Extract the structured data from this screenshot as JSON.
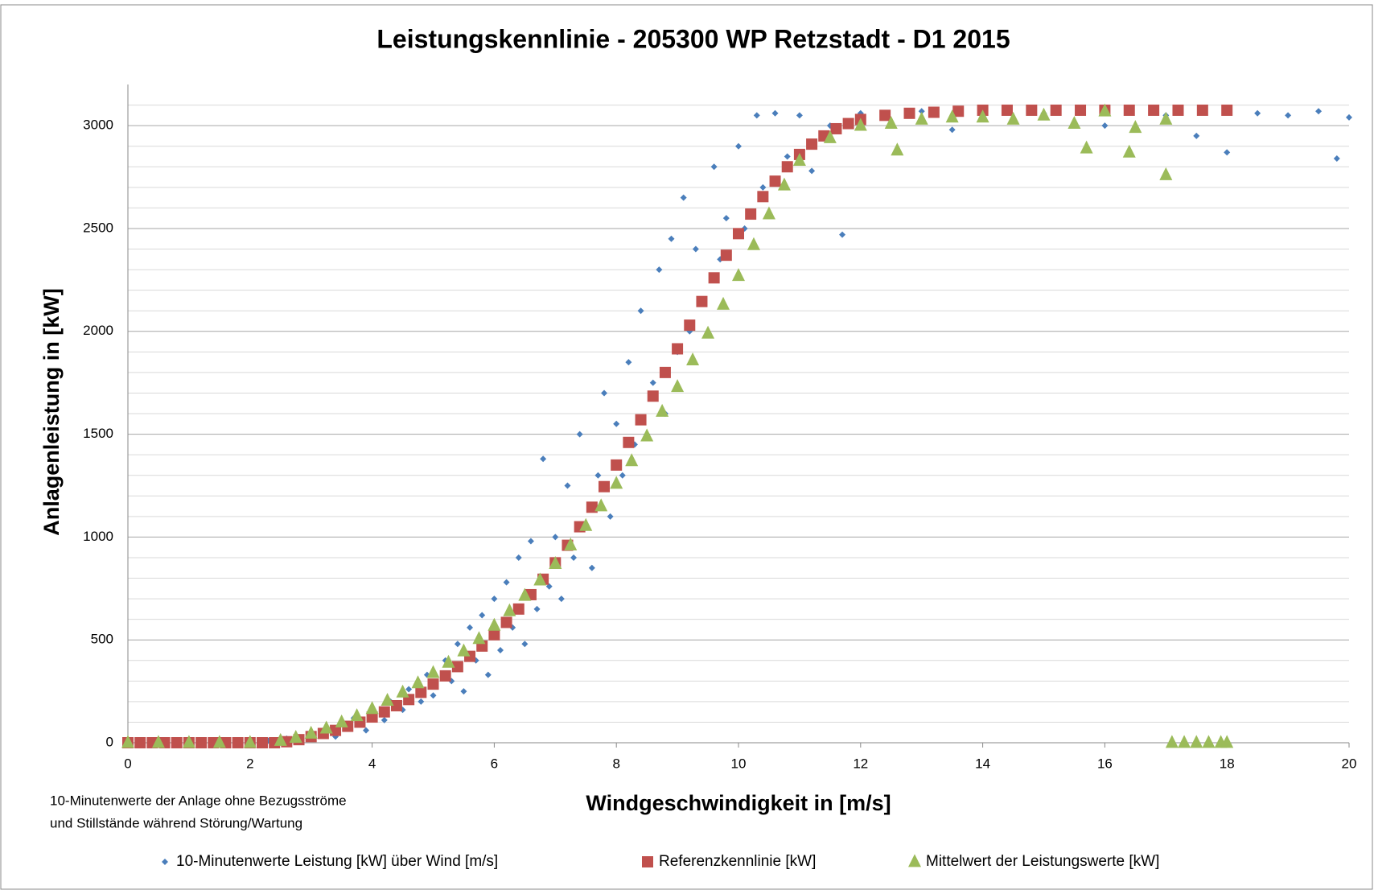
{
  "chart_data": {
    "type": "scatter",
    "title": "Leistungskennlinie - 205300 WP Retzstadt - D1 2015",
    "x_label": "Windgeschwindigkeit in [m/s]",
    "y_label": "Anlagenleistung in [kW]",
    "note": [
      "10-Minutenwerte der Anlage ohne Bezugsströme",
      "und Stillstände während Störung/Wartung"
    ],
    "xlim": [
      0,
      20
    ],
    "xticks": [
      0,
      2,
      4,
      6,
      8,
      10,
      12,
      14,
      16,
      18,
      20
    ],
    "ylim": [
      0,
      3200
    ],
    "yticks": [
      0,
      500,
      1000,
      1500,
      2000,
      2500,
      3000
    ],
    "minor_yticks": [
      100,
      200,
      300,
      400,
      600,
      700,
      800,
      900,
      1100,
      1200,
      1300,
      1400,
      1600,
      1700,
      1800,
      1900,
      2100,
      2200,
      2300,
      2400,
      2600,
      2700,
      2800,
      2900,
      3100
    ],
    "grid": true,
    "legend": "bottom",
    "series": [
      {
        "name": "10-Minutenwerte Leistung [kW] über Wind [m/s]",
        "color": "#4a7ebb",
        "marker": "diamond",
        "x": [
          0.5,
          1,
          1.5,
          2,
          2.3,
          2.6,
          2.8,
          3,
          3.2,
          3.4,
          3.5,
          3.7,
          3.9,
          4,
          4.2,
          4.3,
          4.5,
          4.6,
          4.8,
          4.9,
          5,
          5.2,
          5.3,
          5.4,
          5.5,
          5.6,
          5.7,
          5.8,
          5.9,
          6,
          6.1,
          6.2,
          6.3,
          6.4,
          6.5,
          6.6,
          6.7,
          6.8,
          6.9,
          7,
          7.1,
          7.2,
          7.3,
          7.4,
          7.5,
          7.6,
          7.7,
          7.8,
          7.9,
          8,
          8.1,
          8.2,
          8.3,
          8.4,
          8.5,
          8.6,
          8.7,
          8.8,
          8.9,
          9,
          9.1,
          9.2,
          9.3,
          9.4,
          9.6,
          9.7,
          9.8,
          10,
          10.1,
          10.3,
          10.4,
          10.6,
          10.8,
          11,
          11.2,
          11.5,
          11.7,
          12,
          12.5,
          13,
          13.5,
          14,
          15,
          16,
          17,
          17.5,
          18,
          18.5,
          19,
          19.5,
          19.8,
          20
        ],
        "values": [
          0,
          0,
          0,
          0,
          10,
          20,
          5,
          40,
          60,
          30,
          90,
          120,
          60,
          150,
          110,
          200,
          160,
          260,
          200,
          330,
          230,
          400,
          300,
          480,
          250,
          560,
          400,
          620,
          330,
          700,
          450,
          780,
          560,
          900,
          480,
          980,
          650,
          1380,
          760,
          1000,
          700,
          1250,
          900,
          1500,
          1050,
          850,
          1300,
          1700,
          1100,
          1550,
          1300,
          1850,
          1450,
          2100,
          1500,
          1750,
          2300,
          1600,
          2450,
          1900,
          2650,
          2000,
          2400,
          2150,
          2800,
          2350,
          2550,
          2900,
          2500,
          3050,
          2700,
          3060,
          2850,
          3050,
          2780,
          3000,
          2470,
          3060,
          3000,
          3070,
          2980,
          3070,
          3060,
          3000,
          3050,
          2950,
          2870,
          3060,
          3050,
          3070,
          2840,
          3040
        ]
      },
      {
        "name": "Referenzkennlinie [kW]",
        "color": "#c0504d",
        "marker": "square",
        "x": [
          0,
          0.2,
          0.4,
          0.6,
          0.8,
          1,
          1.2,
          1.4,
          1.6,
          1.8,
          2,
          2.2,
          2.4,
          2.6,
          2.8,
          3,
          3.2,
          3.4,
          3.6,
          3.8,
          4,
          4.2,
          4.4,
          4.6,
          4.8,
          5,
          5.2,
          5.4,
          5.6,
          5.8,
          6,
          6.2,
          6.4,
          6.6,
          6.8,
          7,
          7.2,
          7.4,
          7.6,
          7.8,
          8,
          8.2,
          8.4,
          8.6,
          8.8,
          9,
          9.2,
          9.4,
          9.6,
          9.8,
          10,
          10.2,
          10.4,
          10.6,
          10.8,
          11,
          11.2,
          11.4,
          11.6,
          11.8,
          12,
          12.4,
          12.8,
          13.2,
          13.6,
          14,
          14.4,
          14.8,
          15.2,
          15.6,
          16,
          16.4,
          16.8,
          17.2,
          17.6,
          18
        ],
        "values": [
          0,
          0,
          0,
          0,
          0,
          0,
          0,
          0,
          0,
          0,
          0,
          0,
          0,
          5,
          15,
          30,
          45,
          60,
          80,
          100,
          125,
          150,
          180,
          210,
          245,
          285,
          325,
          370,
          420,
          470,
          525,
          585,
          650,
          720,
          795,
          875,
          960,
          1050,
          1145,
          1245,
          1350,
          1460,
          1570,
          1685,
          1800,
          1915,
          2030,
          2145,
          2260,
          2370,
          2475,
          2570,
          2655,
          2730,
          2800,
          2860,
          2910,
          2950,
          2985,
          3010,
          3030,
          3050,
          3060,
          3065,
          3070,
          3075,
          3075,
          3075,
          3075,
          3075,
          3075,
          3075,
          3075,
          3075,
          3075,
          3075
        ]
      },
      {
        "name": "Mittelwert der Leistungswerte [kW]",
        "color": "#9bbb59",
        "marker": "triangle",
        "x": [
          0,
          0.5,
          1,
          1.5,
          2,
          2.5,
          2.75,
          3,
          3.25,
          3.5,
          3.75,
          4,
          4.25,
          4.5,
          4.75,
          5,
          5.25,
          5.5,
          5.75,
          6,
          6.25,
          6.5,
          6.75,
          7,
          7.25,
          7.5,
          7.75,
          8,
          8.25,
          8.5,
          8.75,
          9,
          9.25,
          9.5,
          9.75,
          10,
          10.25,
          10.5,
          10.75,
          11,
          11.5,
          12,
          12.5,
          13,
          13.5,
          14,
          14.5,
          15,
          15.5,
          16,
          16.5,
          17,
          17,
          17.1,
          17.3,
          17.5,
          17.7,
          17.9,
          18,
          12.6,
          15.7,
          16.4
        ],
        "values": [
          0,
          0,
          0,
          0,
          0,
          10,
          25,
          45,
          70,
          100,
          130,
          165,
          205,
          245,
          290,
          340,
          390,
          445,
          505,
          570,
          640,
          715,
          790,
          870,
          960,
          1055,
          1150,
          1260,
          1370,
          1490,
          1610,
          1730,
          1860,
          1990,
          2130,
          2270,
          2420,
          2570,
          2710,
          2830,
          2940,
          3000,
          3010,
          3030,
          3040,
          3040,
          3030,
          3050,
          3010,
          3070,
          2990,
          3030,
          2760,
          0,
          0,
          0,
          0,
          0,
          0,
          2880,
          2890,
          2870
        ]
      }
    ]
  }
}
